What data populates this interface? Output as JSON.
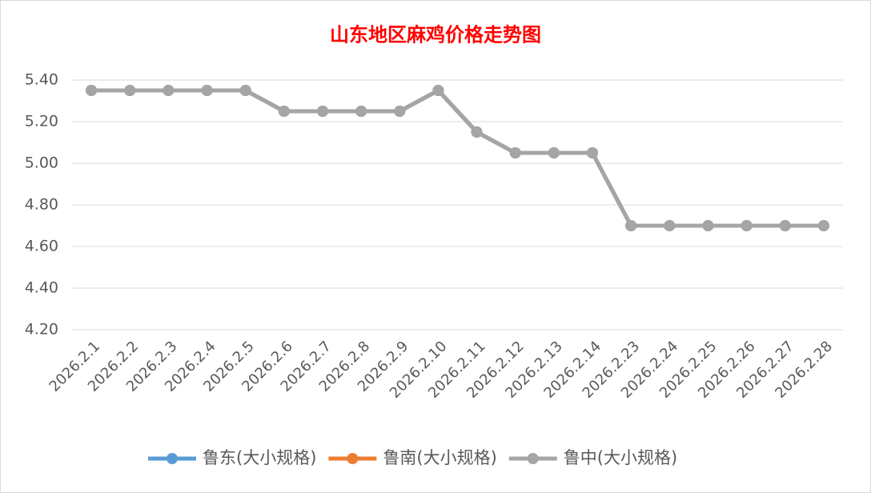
{
  "chart_data": {
    "type": "line",
    "title": "山东地区麻鸡价格走势图",
    "categories": [
      "2026.2.1",
      "2026.2.2",
      "2026.2.3",
      "2026.2.4",
      "2026.2.5",
      "2026.2.6",
      "2026.2.7",
      "2026.2.8",
      "2026.2.9",
      "2026.2.10",
      "2026.2.11",
      "2026.2.12",
      "2026.2.13",
      "2026.2.14",
      "2026.2.23",
      "2026.2.24",
      "2026.2.25",
      "2026.2.26",
      "2026.2.27",
      "2026.2.28"
    ],
    "series": [
      {
        "name": "鲁东(大小规格)",
        "color": "#5b9bd5",
        "values": [
          5.35,
          5.35,
          5.35,
          5.35,
          5.35,
          5.25,
          5.25,
          5.25,
          5.25,
          5.35,
          5.15,
          5.05,
          5.05,
          5.05,
          4.7,
          4.7,
          4.7,
          4.7,
          4.7,
          4.7
        ]
      },
      {
        "name": "鲁南(大小规格)",
        "color": "#ed7d31",
        "values": [
          5.35,
          5.35,
          5.35,
          5.35,
          5.35,
          5.25,
          5.25,
          5.25,
          5.25,
          5.35,
          5.15,
          5.05,
          5.05,
          5.05,
          4.7,
          4.7,
          4.7,
          4.7,
          4.7,
          4.7
        ]
      },
      {
        "name": "鲁中(大小规格)",
        "color": "#a5a5a5",
        "values": [
          5.35,
          5.35,
          5.35,
          5.35,
          5.35,
          5.25,
          5.25,
          5.25,
          5.25,
          5.35,
          5.15,
          5.05,
          5.05,
          5.05,
          4.7,
          4.7,
          4.7,
          4.7,
          4.7,
          4.7
        ]
      }
    ],
    "ylim": [
      4.2,
      5.4
    ],
    "yticks": [
      {
        "value": 4.2,
        "label": "4.20"
      },
      {
        "value": 4.4,
        "label": "4.40"
      },
      {
        "value": 4.6,
        "label": "4.60"
      },
      {
        "value": 4.8,
        "label": "4.80"
      },
      {
        "value": 5.0,
        "label": "5.00"
      },
      {
        "value": 5.2,
        "label": "5.20"
      },
      {
        "value": 5.4,
        "label": "5.40"
      }
    ],
    "grid": true,
    "legend": "bottom"
  }
}
